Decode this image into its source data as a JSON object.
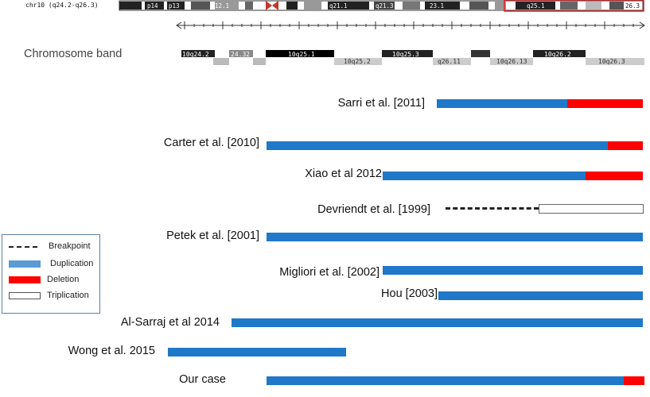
{
  "ideogram": {
    "chr_label": "chr10 (q24.2-q26.3)",
    "bands": [
      "p14",
      "p13",
      "12.1",
      "q21.1",
      "q21.3",
      "23.1",
      "q25.1",
      "26.3"
    ]
  },
  "band_track": {
    "title": "Chromosome band",
    "top_bands": [
      "10q24.2",
      "24.32",
      "10q25.1",
      "10q25.3",
      "10q26.2"
    ],
    "bottom_bands": [
      "10q25.2",
      "q26.11",
      "10q26.13",
      "10q26.3"
    ]
  },
  "studies": [
    {
      "label": "Sarri et al. [2011]",
      "type": "dup-del"
    },
    {
      "label": "Carter et al. [2010]",
      "type": "dup-del"
    },
    {
      "label": "Xiao et al 2012",
      "type": "dup-del"
    },
    {
      "label": "Devriendt et al. [1999]",
      "type": "breakpoint-triplication"
    },
    {
      "label": "Petek et al. [2001]",
      "type": "dup"
    },
    {
      "label": "Migliori et al. [2002]",
      "type": "dup"
    },
    {
      "label": "Hou [2003]",
      "type": "dup"
    },
    {
      "label": "Al-Sarraj et al 2014",
      "type": "dup"
    },
    {
      "label": "Wong et al. 2015",
      "type": "dup"
    },
    {
      "label": "Our case",
      "type": "dup-del"
    }
  ],
  "legend": {
    "breakpoint": "Breakpoint",
    "duplication": "Duplication",
    "deletion": "Deletion",
    "triplication": "Triplication"
  },
  "colors": {
    "duplication": "#1f78c8",
    "deletion": "#ff0000",
    "triplication": "#ffffff",
    "breakpoint": "#222222"
  }
}
